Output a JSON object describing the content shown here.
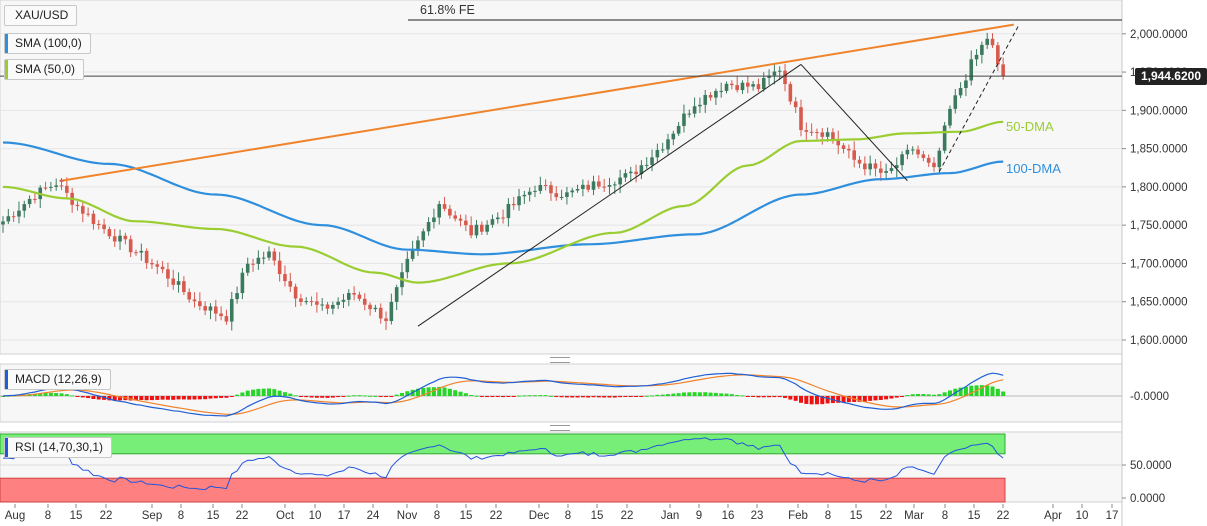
{
  "symbol": "XAU/USD",
  "legend": {
    "sma100": "SMA (100,0)",
    "sma50": "SMA (50,0)",
    "macd": "MACD (12,26,9)",
    "rsi": "RSI (14,70,30,1)"
  },
  "annotations": {
    "fib": "61.8% FE",
    "dma50": "50-DMA",
    "dma100": "100-DMA"
  },
  "current_price": "1,944.6200",
  "colors": {
    "up": "#3c7a5f",
    "down": "#d65a4e",
    "sma100": "#2f8fdd",
    "sma50": "#9acd32",
    "trendline": "#f0842c",
    "macd_line": "#1e5fd6",
    "signal_line": "#f0842c",
    "hist_pos": "#27d427",
    "hist_neg": "#ee1111",
    "rsi_line": "#2255dd",
    "rsi_upper_band": "#77ee77",
    "rsi_lower_band": "#ff8080"
  },
  "chart_data": [
    {
      "type": "candlestick",
      "title": "XAU/USD",
      "ylim": [
        1590,
        2020
      ],
      "yticks": [
        "2,000.0000",
        "1,950.0000",
        "1,900.0000",
        "1,850.0000",
        "1,800.0000",
        "1,750.0000",
        "1,700.0000",
        "1,650.0000",
        "1,600.0000"
      ],
      "ytick_values": [
        2000,
        1950,
        1900,
        1850,
        1800,
        1750,
        1700,
        1650,
        1600
      ],
      "xticks": [
        "Aug",
        "8",
        "15",
        "22",
        "Sep",
        "8",
        "15",
        "22",
        "Oct",
        "10",
        "17",
        "24",
        "Nov",
        "8",
        "15",
        "22",
        "Dec",
        "8",
        "15",
        "22",
        "Jan",
        "9",
        "16",
        "23",
        "Feb",
        "8",
        "15",
        "22",
        "Mar",
        "8",
        "15",
        "22",
        "Apr",
        "10",
        "17"
      ],
      "anchors": [
        {
          "i": 0,
          "v": 1755
        },
        {
          "i": 6,
          "v": 1790
        },
        {
          "i": 10,
          "v": 1805
        },
        {
          "i": 14,
          "v": 1775
        },
        {
          "i": 18,
          "v": 1750
        },
        {
          "i": 24,
          "v": 1720
        },
        {
          "i": 30,
          "v": 1690
        },
        {
          "i": 36,
          "v": 1650
        },
        {
          "i": 42,
          "v": 1630
        },
        {
          "i": 46,
          "v": 1700
        },
        {
          "i": 50,
          "v": 1712
        },
        {
          "i": 55,
          "v": 1660
        },
        {
          "i": 60,
          "v": 1640
        },
        {
          "i": 66,
          "v": 1660
        },
        {
          "i": 72,
          "v": 1628
        },
        {
          "i": 76,
          "v": 1700
        },
        {
          "i": 82,
          "v": 1780
        },
        {
          "i": 88,
          "v": 1740
        },
        {
          "i": 94,
          "v": 1765
        },
        {
          "i": 100,
          "v": 1800
        },
        {
          "i": 106,
          "v": 1790
        },
        {
          "i": 112,
          "v": 1805
        },
        {
          "i": 118,
          "v": 1815
        },
        {
          "i": 124,
          "v": 1855
        },
        {
          "i": 130,
          "v": 1910
        },
        {
          "i": 136,
          "v": 1935
        },
        {
          "i": 142,
          "v": 1930
        },
        {
          "i": 146,
          "v": 1955
        },
        {
          "i": 150,
          "v": 1880
        },
        {
          "i": 155,
          "v": 1870
        },
        {
          "i": 160,
          "v": 1835
        },
        {
          "i": 166,
          "v": 1815
        },
        {
          "i": 171,
          "v": 1850
        },
        {
          "i": 175,
          "v": 1820
        },
        {
          "i": 178,
          "v": 1900
        },
        {
          "i": 182,
          "v": 1960
        },
        {
          "i": 185,
          "v": 1995
        },
        {
          "i": 188,
          "v": 1944.62
        }
      ],
      "series": [
        {
          "name": "SMA (100,0)",
          "points": [
            {
              "i": 0,
              "v": 1858
            },
            {
              "i": 20,
              "v": 1830
            },
            {
              "i": 40,
              "v": 1790
            },
            {
              "i": 60,
              "v": 1750
            },
            {
              "i": 76,
              "v": 1718
            },
            {
              "i": 90,
              "v": 1712
            },
            {
              "i": 110,
              "v": 1725
            },
            {
              "i": 130,
              "v": 1738
            },
            {
              "i": 150,
              "v": 1790
            },
            {
              "i": 165,
              "v": 1810
            },
            {
              "i": 178,
              "v": 1818
            },
            {
              "i": 188,
              "v": 1833
            }
          ]
        },
        {
          "name": "SMA (50,0)",
          "points": [
            {
              "i": 0,
              "v": 1800
            },
            {
              "i": 12,
              "v": 1785
            },
            {
              "i": 25,
              "v": 1755
            },
            {
              "i": 40,
              "v": 1745
            },
            {
              "i": 55,
              "v": 1722
            },
            {
              "i": 70,
              "v": 1688
            },
            {
              "i": 78,
              "v": 1675
            },
            {
              "i": 95,
              "v": 1700
            },
            {
              "i": 115,
              "v": 1740
            },
            {
              "i": 128,
              "v": 1775
            },
            {
              "i": 140,
              "v": 1828
            },
            {
              "i": 150,
              "v": 1860
            },
            {
              "i": 160,
              "v": 1862
            },
            {
              "i": 170,
              "v": 1870
            },
            {
              "i": 180,
              "v": 1872
            },
            {
              "i": 188,
              "v": 1885
            }
          ]
        }
      ],
      "trendlines": [
        {
          "name": "rising-resistance",
          "from": {
            "i": 11,
            "v": 1808
          },
          "to": {
            "i": 190,
            "v": 2012
          }
        },
        {
          "name": "rally-line-nov-feb",
          "from": {
            "i": 78,
            "v": 1618
          },
          "to": {
            "i": 150,
            "v": 1960
          }
        },
        {
          "name": "drop-line-feb",
          "from": {
            "i": 150,
            "v": 1960
          },
          "to": {
            "i": 170,
            "v": 1808
          }
        },
        {
          "name": "fib-618",
          "level": 2018
        }
      ],
      "last_value": 1944.62
    },
    {
      "type": "macd",
      "title": "MACD (12,26,9)",
      "yticks": [
        "-0.0000"
      ],
      "ylim": [
        -40,
        45
      ]
    },
    {
      "type": "line",
      "title": "RSI (14,70,30,1)",
      "yticks": [
        "50.0000",
        "0.0000"
      ],
      "ylim": [
        0,
        100
      ],
      "bands": [
        70,
        30
      ]
    }
  ]
}
